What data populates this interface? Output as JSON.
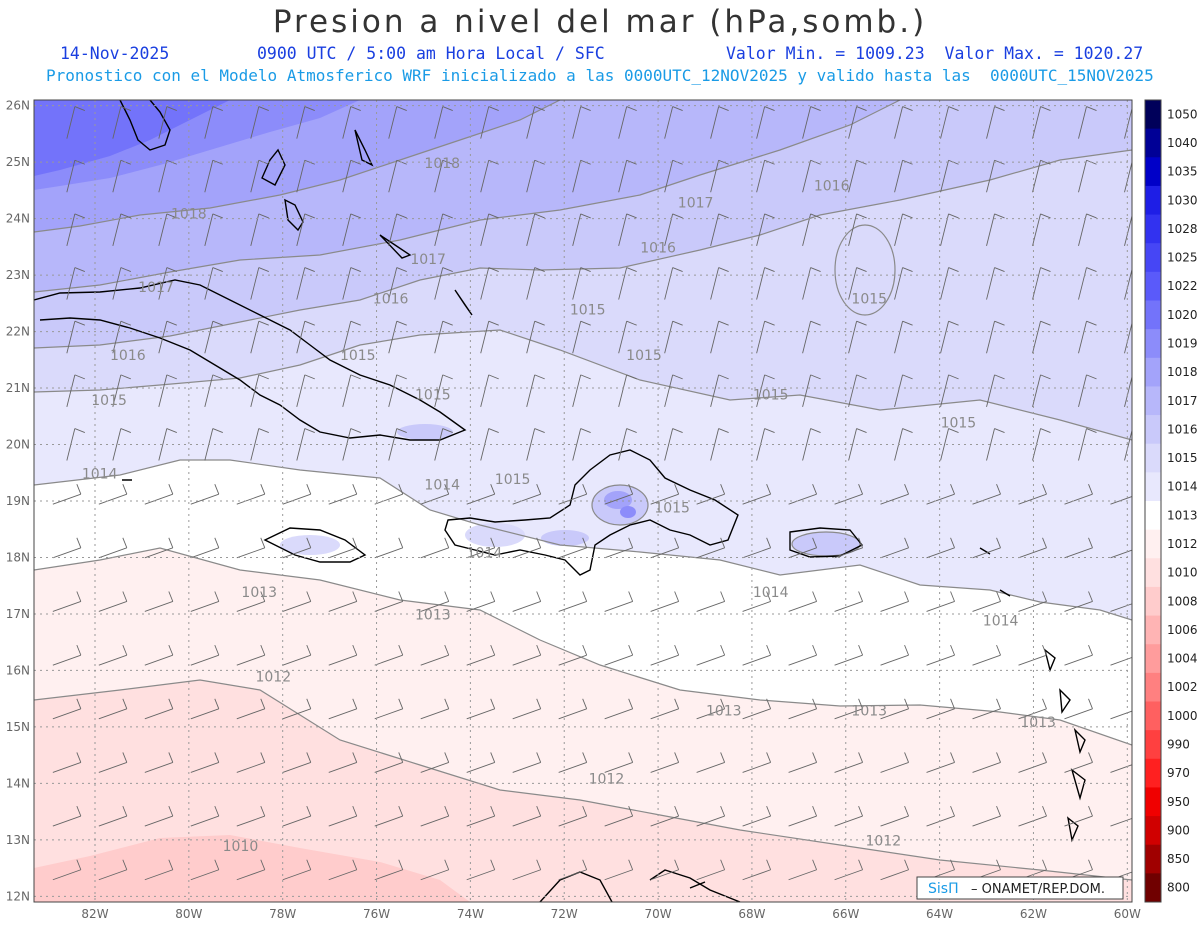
{
  "header": {
    "title": "Presion a nivel del mar (hPa,somb.)",
    "date": "14-Nov-2025",
    "time": "0900 UTC / 5:00 am Hora Local / SFC",
    "minmax": "Valor Min. = 1009.23  Valor Max. = 1020.27",
    "subtitle": "Pronostico con el Modelo Atmosferico WRF inicializado a las 0000UTC_12NOV2025 y valido hasta las  0000UTC_15NOV2025"
  },
  "map": {
    "lon_range": [
      -83.3,
      -59.9
    ],
    "lat_range": [
      11.9,
      26.1
    ],
    "x_ticks": [
      "82W",
      "80W",
      "78W",
      "76W",
      "74W",
      "72W",
      "70W",
      "68W",
      "66W",
      "64W",
      "62W",
      "60W"
    ],
    "x_tick_values": [
      -82,
      -80,
      -78,
      -76,
      -74,
      -72,
      -70,
      -68,
      -66,
      -64,
      -62,
      -60
    ],
    "y_ticks": [
      "26N",
      "25N",
      "24N",
      "23N",
      "22N",
      "21N",
      "20N",
      "19N",
      "18N",
      "17N",
      "16N",
      "15N",
      "14N",
      "13N",
      "12N"
    ],
    "y_tick_values": [
      26,
      25,
      24,
      23,
      22,
      21,
      20,
      19,
      18,
      17,
      16,
      15,
      14,
      13,
      12
    ],
    "grid": true,
    "contour_labels": [
      {
        "text": "1018",
        "lon": -80.0,
        "lat": 24.0
      },
      {
        "text": "1018",
        "lon": -74.6,
        "lat": 24.9
      },
      {
        "text": "1017",
        "lon": -80.7,
        "lat": 22.7
      },
      {
        "text": "1017",
        "lon": -74.9,
        "lat": 23.2
      },
      {
        "text": "1017",
        "lon": -69.2,
        "lat": 24.2
      },
      {
        "text": "1016",
        "lon": -81.3,
        "lat": 21.5
      },
      {
        "text": "1016",
        "lon": -75.7,
        "lat": 22.5
      },
      {
        "text": "1016",
        "lon": -70.0,
        "lat": 23.4
      },
      {
        "text": "1016",
        "lon": -66.3,
        "lat": 24.5
      },
      {
        "text": "1015",
        "lon": -81.7,
        "lat": 20.7
      },
      {
        "text": "1015",
        "lon": -76.4,
        "lat": 21.5
      },
      {
        "text": "1015",
        "lon": -71.5,
        "lat": 22.3
      },
      {
        "text": "1015",
        "lon": -70.3,
        "lat": 21.5
      },
      {
        "text": "1015",
        "lon": -65.5,
        "lat": 22.5
      },
      {
        "text": "1015",
        "lon": -67.6,
        "lat": 20.8
      },
      {
        "text": "1015",
        "lon": -74.8,
        "lat": 20.8
      },
      {
        "text": "1015",
        "lon": -73.1,
        "lat": 19.3
      },
      {
        "text": "1015",
        "lon": -69.7,
        "lat": 18.8
      },
      {
        "text": "1015",
        "lon": -63.6,
        "lat": 20.3
      },
      {
        "text": "1014",
        "lon": -81.9,
        "lat": 19.4
      },
      {
        "text": "1014",
        "lon": -74.6,
        "lat": 19.2
      },
      {
        "text": "1014",
        "lon": -73.7,
        "lat": 18.0
      },
      {
        "text": "1014",
        "lon": -67.6,
        "lat": 17.3
      },
      {
        "text": "1014",
        "lon": -62.7,
        "lat": 16.8
      },
      {
        "text": "1013",
        "lon": -78.5,
        "lat": 17.3
      },
      {
        "text": "1013",
        "lon": -74.8,
        "lat": 16.9
      },
      {
        "text": "1013",
        "lon": -68.6,
        "lat": 15.2
      },
      {
        "text": "1013",
        "lon": -65.5,
        "lat": 15.2
      },
      {
        "text": "1013",
        "lon": -61.9,
        "lat": 15.0
      },
      {
        "text": "1012",
        "lon": -78.2,
        "lat": 15.8
      },
      {
        "text": "1012",
        "lon": -71.1,
        "lat": 14.0
      },
      {
        "text": "1012",
        "lon": -65.2,
        "lat": 12.9
      },
      {
        "text": "1010",
        "lon": -78.9,
        "lat": 12.8
      }
    ]
  },
  "colorbar": {
    "levels": [
      "1050",
      "1040",
      "1035",
      "1030",
      "1028",
      "1025",
      "1022",
      "1020",
      "1019",
      "1018",
      "1017",
      "1016",
      "1015",
      "1014",
      "1013",
      "1012",
      "1010",
      "1008",
      "1006",
      "1004",
      "1002",
      "1000",
      "990",
      "970",
      "950",
      "900",
      "850",
      "800"
    ],
    "colors": [
      "#00005a",
      "#000096",
      "#0000c8",
      "#1e1ee6",
      "#3232f0",
      "#4646f5",
      "#5a5afa",
      "#7373fa",
      "#8c8cfa",
      "#a3a3fa",
      "#b7b7fa",
      "#c9c9fa",
      "#dadafb",
      "#e8e8fd",
      "#ffffff",
      "#fff0f0",
      "#ffe0e0",
      "#ffcccc",
      "#ffb4b4",
      "#ff9c9c",
      "#ff8080",
      "#ff6060",
      "#ff4040",
      "#ff2020",
      "#f00000",
      "#d00000",
      "#a00000",
      "#700000"
    ]
  },
  "credit": {
    "brand": "SisΠ",
    "text": "– ONAMET/REP.DOM."
  },
  "colors": {
    "header_blue": "#1a3fe0",
    "subtitle_cyan": "#1a9be6",
    "contour_gray": "#8a8a8a",
    "coast": "#000000"
  }
}
